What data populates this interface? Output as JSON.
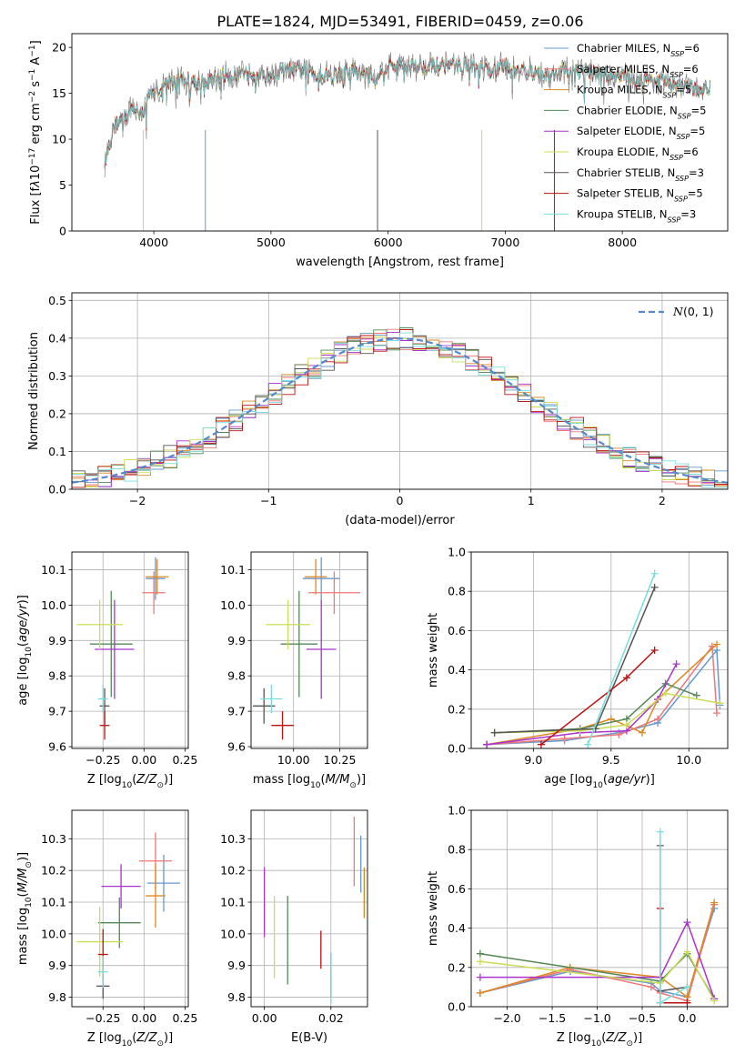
{
  "figure_title": "PLATE=1824, MJD=53491, FIBERID=0459, z=0.06",
  "chart_data": [
    {
      "id": "spectrum",
      "type": "line",
      "title": "PLATE=1824, MJD=53491, FIBERID=0459, z=0.06",
      "xlabel": "wavelength [Angstrom, rest frame]",
      "ylabel": "Flux [fλ10⁻¹⁷ erg cm⁻² s⁻¹ A⁻¹]",
      "xlim": [
        3300,
        8900
      ],
      "ylim": [
        0,
        21.5
      ],
      "xticks": [
        4000,
        5000,
        6000,
        7000,
        8000
      ],
      "yticks": [
        0,
        5,
        10,
        15,
        20
      ],
      "legend_position": "right",
      "grid": false,
      "continuum": {
        "x": [
          3580,
          3650,
          3700,
          3760,
          3800,
          3850,
          3900,
          3950,
          4000,
          4050,
          4100,
          4200,
          4300,
          4400,
          4500,
          4600,
          4700,
          4800,
          4900,
          5000,
          5100,
          5200,
          5300,
          5400,
          5500,
          5600,
          5700,
          5800,
          5900,
          6000,
          6100,
          6200,
          6300,
          6400,
          6500,
          6600,
          6700,
          6800,
          6900,
          7000,
          7100,
          7200,
          7300,
          7400,
          7500,
          7600,
          7700,
          7800,
          7900,
          8000,
          8100,
          8200,
          8300,
          8400,
          8500,
          8600,
          8750
        ],
        "y": [
          7.5,
          11,
          12,
          12.5,
          13,
          13.5,
          12.5,
          15,
          15,
          15.5,
          16,
          16.5,
          16.5,
          16,
          16.5,
          17,
          17,
          17.5,
          17,
          17,
          17.5,
          17.5,
          17.5,
          17,
          17,
          17,
          17.5,
          17,
          17,
          18,
          18,
          18,
          18,
          18,
          18,
          18,
          18,
          17.5,
          17.5,
          18,
          17.5,
          17.5,
          17,
          17,
          17.5,
          17.5,
          17.5,
          17,
          17,
          17,
          16.5,
          16.5,
          16.5,
          16,
          16,
          15.5,
          15.5
        ]
      },
      "series": [
        {
          "name": "Chabrier MILES, N_SSP=6",
          "label_main": "Chabrier MILES, N",
          "label_sub": "SSP",
          "label_tail": "=6",
          "color": "#6699cc"
        },
        {
          "name": "Salpeter MILES, N_SSP=6",
          "label_main": "Salpeter MILES, N",
          "label_sub": "SSP",
          "label_tail": "=6",
          "color": "#ee7777"
        },
        {
          "name": "Kroupa MILES, N_SSP=5",
          "label_main": "Kroupa MILES, N",
          "label_sub": "SSP",
          "label_tail": "=5",
          "color": "#dd8822"
        },
        {
          "name": "Chabrier ELODIE, N_SSP=5",
          "label_main": "Chabrier ELODIE, N",
          "label_sub": "SSP",
          "label_tail": "=5",
          "color": "#558855"
        },
        {
          "name": "Salpeter ELODIE, N_SSP=5",
          "label_main": "Salpeter ELODIE, N",
          "label_sub": "SSP",
          "label_tail": "=5",
          "color": "#aa33cc"
        },
        {
          "name": "Kroupa ELODIE, N_SSP=6",
          "label_main": "Kroupa ELODIE, N",
          "label_sub": "SSP",
          "label_tail": "=6",
          "color": "#ccdd55"
        },
        {
          "name": "Chabrier STELIB, N_SSP=3",
          "label_main": "Chabrier STELIB, N",
          "label_sub": "SSP",
          "label_tail": "=3",
          "color": "#555555"
        },
        {
          "name": "Salpeter STELIB, N_SSP=5",
          "label_main": "Salpeter STELIB, N",
          "label_sub": "SSP",
          "label_tail": "=5",
          "color": "#bb1111"
        },
        {
          "name": "Kroupa STELIB, N_SSP=3",
          "label_main": "Kroupa STELIB, N",
          "label_sub": "SSP",
          "label_tail": "=3",
          "color": "#77dddd"
        }
      ]
    },
    {
      "id": "residuals",
      "type": "histogram",
      "xlabel": "(data-model)/error",
      "ylabel": "Normed distribution",
      "xlim": [
        -2.5,
        2.5
      ],
      "ylim": [
        0,
        0.52
      ],
      "xticks": [
        -2,
        -1,
        0,
        1,
        2
      ],
      "yticks": [
        0.0,
        0.1,
        0.2,
        0.3,
        0.4,
        0.5
      ],
      "bin_width": 0.1,
      "grid": true,
      "legend_label": "N(0,1)",
      "legend_position": "top-right",
      "gaussian_color": "#5588cc"
    },
    {
      "id": "age_vs_Z",
      "type": "errorbar",
      "xlabel": "Z [log10(Z/Z⊙)]",
      "ylabel": "age  [log10(age/yr)]",
      "xlim": [
        -0.44,
        0.27
      ],
      "ylim": [
        9.595,
        10.15
      ],
      "xticks": [
        -0.25,
        0.0,
        0.25
      ],
      "yticks": [
        9.6,
        9.7,
        9.8,
        9.9,
        10.0,
        10.1
      ],
      "grid": true,
      "points": [
        {
          "x": 0.07,
          "xerr": 0.06,
          "y": 10.075,
          "yerr": 0.06,
          "color": "#6699cc"
        },
        {
          "x": 0.06,
          "xerr": 0.07,
          "y": 10.035,
          "yerr": 0.06,
          "color": "#ee7777"
        },
        {
          "x": 0.08,
          "xerr": 0.07,
          "y": 10.08,
          "yerr": 0.05,
          "color": "#dd8822"
        },
        {
          "x": -0.2,
          "xerr": 0.13,
          "y": 9.89,
          "yerr": 0.15,
          "color": "#558855"
        },
        {
          "x": -0.18,
          "xerr": 0.12,
          "y": 9.875,
          "yerr": 0.14,
          "color": "#aa33cc"
        },
        {
          "x": -0.27,
          "xerr": 0.14,
          "y": 9.945,
          "yerr": 0.07,
          "color": "#ccdd55"
        },
        {
          "x": -0.24,
          "xerr": 0.03,
          "y": 9.715,
          "yerr": 0.05,
          "color": "#555555"
        },
        {
          "x": -0.24,
          "xerr": 0.03,
          "y": 9.66,
          "yerr": 0.04,
          "color": "#bb1111"
        },
        {
          "x": -0.25,
          "xerr": 0.03,
          "y": 9.735,
          "yerr": 0.04,
          "color": "#77dddd"
        }
      ]
    },
    {
      "id": "age_vs_mass",
      "type": "errorbar",
      "xlabel": "mass [log10(M/M⊙)]",
      "ylabel": "",
      "xlim": [
        9.77,
        10.4
      ],
      "ylim": [
        9.595,
        10.15
      ],
      "xticks": [
        10.0,
        10.25
      ],
      "yticks": [
        9.6,
        9.7,
        9.8,
        9.9,
        10.0,
        10.1
      ],
      "grid": true,
      "points": [
        {
          "x": 10.15,
          "xerr": 0.1,
          "y": 10.075,
          "yerr": 0.06,
          "color": "#6699cc"
        },
        {
          "x": 10.22,
          "xerr": 0.14,
          "y": 10.035,
          "yerr": 0.06,
          "color": "#ee7777"
        },
        {
          "x": 10.12,
          "xerr": 0.06,
          "y": 10.08,
          "yerr": 0.05,
          "color": "#dd8822"
        },
        {
          "x": 10.03,
          "xerr": 0.1,
          "y": 9.89,
          "yerr": 0.15,
          "color": "#558855"
        },
        {
          "x": 10.15,
          "xerr": 0.08,
          "y": 9.875,
          "yerr": 0.14,
          "color": "#aa33cc"
        },
        {
          "x": 9.97,
          "xerr": 0.12,
          "y": 9.945,
          "yerr": 0.07,
          "color": "#ccdd55"
        },
        {
          "x": 9.84,
          "xerr": 0.06,
          "y": 9.715,
          "yerr": 0.05,
          "color": "#555555"
        },
        {
          "x": 9.94,
          "xerr": 0.06,
          "y": 9.66,
          "yerr": 0.04,
          "color": "#bb1111"
        },
        {
          "x": 9.88,
          "xerr": 0.06,
          "y": 9.735,
          "yerr": 0.04,
          "color": "#77dddd"
        }
      ]
    },
    {
      "id": "weight_vs_age",
      "type": "line",
      "xlabel": "age  [log10(age/yr)]",
      "ylabel": "mass weight",
      "xlim": [
        8.6,
        10.25
      ],
      "ylim": [
        0,
        1.0
      ],
      "xticks": [
        9.0,
        9.5,
        10.0
      ],
      "yticks": [
        0.0,
        0.2,
        0.4,
        0.6,
        0.8,
        1.0
      ],
      "grid": true,
      "series": [
        {
          "name": "Chabrier MILES",
          "color": "#6699cc",
          "x": [
            8.7,
            9.2,
            9.55,
            9.8,
            10.18,
            10.2
          ],
          "y": [
            0.02,
            0.04,
            0.08,
            0.13,
            0.5,
            0.22
          ]
        },
        {
          "name": "Salpeter MILES",
          "color": "#ee7777",
          "x": [
            8.7,
            9.2,
            9.55,
            9.8,
            10.15,
            10.18
          ],
          "y": [
            0.02,
            0.05,
            0.07,
            0.15,
            0.52,
            0.18
          ]
        },
        {
          "name": "Kroupa MILES",
          "color": "#dd8822",
          "x": [
            8.7,
            9.3,
            9.5,
            9.7,
            9.8,
            10.18
          ],
          "y": [
            0.02,
            0.1,
            0.15,
            0.08,
            0.25,
            0.53
          ]
        },
        {
          "name": "Chabrier ELODIE",
          "color": "#558855",
          "x": [
            8.75,
            9.3,
            9.6,
            9.85,
            10.05
          ],
          "y": [
            0.08,
            0.1,
            0.15,
            0.33,
            0.27
          ]
        },
        {
          "name": "Salpeter ELODIE",
          "color": "#aa33cc",
          "x": [
            8.7,
            9.3,
            9.6,
            9.8,
            9.92
          ],
          "y": [
            0.02,
            0.08,
            0.09,
            0.25,
            0.43
          ]
        },
        {
          "name": "Kroupa ELODIE",
          "color": "#ccdd55",
          "x": [
            8.75,
            9.3,
            9.6,
            9.85,
            10.2
          ],
          "y": [
            0.08,
            0.09,
            0.12,
            0.28,
            0.23
          ]
        },
        {
          "name": "Chabrier STELIB",
          "color": "#555555",
          "x": [
            8.75,
            9.4,
            9.78
          ],
          "y": [
            0.08,
            0.1,
            0.82
          ]
        },
        {
          "name": "Salpeter STELIB",
          "color": "#bb1111",
          "x": [
            9.05,
            9.6,
            9.78
          ],
          "y": [
            0.02,
            0.36,
            0.5
          ]
        },
        {
          "name": "Kroupa STELIB",
          "color": "#77dddd",
          "x": [
            9.35,
            9.78
          ],
          "y": [
            0.02,
            0.89
          ]
        }
      ]
    },
    {
      "id": "mass_vs_Z",
      "type": "errorbar",
      "xlabel": "Z [log10(Z/Z⊙)]",
      "ylabel": "mass [log10(M/M⊙)]",
      "xlim": [
        -0.44,
        0.27
      ],
      "ylim": [
        9.77,
        10.39
      ],
      "xticks": [
        -0.25,
        0.0,
        0.25
      ],
      "yticks": [
        9.8,
        9.9,
        10.0,
        10.1,
        10.2,
        10.3
      ],
      "grid": true,
      "points": [
        {
          "x": 0.12,
          "xerr": 0.1,
          "y": 10.16,
          "yerr": 0.09,
          "color": "#6699cc"
        },
        {
          "x": 0.07,
          "xerr": 0.1,
          "y": 10.23,
          "yerr": 0.09,
          "color": "#ee7777"
        },
        {
          "x": 0.07,
          "xerr": 0.06,
          "y": 10.12,
          "yerr": 0.1,
          "color": "#dd8822"
        },
        {
          "x": -0.15,
          "xerr": 0.13,
          "y": 10.035,
          "yerr": 0.08,
          "color": "#558855"
        },
        {
          "x": -0.14,
          "xerr": 0.12,
          "y": 10.15,
          "yerr": 0.07,
          "color": "#aa33cc"
        },
        {
          "x": -0.27,
          "xerr": 0.14,
          "y": 9.975,
          "yerr": 0.11,
          "color": "#ccdd55"
        },
        {
          "x": -0.25,
          "xerr": 0.04,
          "y": 9.835,
          "yerr": 0.04,
          "color": "#555555"
        },
        {
          "x": -0.25,
          "xerr": 0.03,
          "y": 9.935,
          "yerr": 0.08,
          "color": "#bb1111"
        },
        {
          "x": -0.25,
          "xerr": 0.03,
          "y": 9.88,
          "yerr": 0.05,
          "color": "#77dddd"
        }
      ]
    },
    {
      "id": "mass_vs_EBV",
      "type": "errorbar",
      "xlabel": "E(B-V)",
      "ylabel": "",
      "xlim": [
        -0.004,
        0.031
      ],
      "ylim": [
        9.77,
        10.39
      ],
      "xticks": [
        0.0,
        0.02
      ],
      "yticks": [
        9.8,
        9.9,
        10.0,
        10.1,
        10.2,
        10.3
      ],
      "grid": true,
      "points": [
        {
          "x": 0.029,
          "y": 10.22,
          "yerr": 0.09,
          "color": "#6699cc"
        },
        {
          "x": 0.027,
          "y": 10.26,
          "yerr": 0.11,
          "color": "#ee7777"
        },
        {
          "x": 0.03,
          "y": 10.13,
          "yerr": 0.08,
          "color": "#dd8822"
        },
        {
          "x": 0.007,
          "y": 9.98,
          "yerr": 0.14,
          "color": "#558855"
        },
        {
          "x": 0.0,
          "y": 10.1,
          "yerr": 0.11,
          "color": "#aa33cc"
        },
        {
          "x": 0.003,
          "y": 9.99,
          "yerr": 0.13,
          "color": "#ccdd55"
        },
        {
          "x": 0.02,
          "y": 9.87,
          "yerr": 0.07,
          "color": "#555555"
        },
        {
          "x": 0.017,
          "y": 9.95,
          "yerr": 0.06,
          "color": "#bb1111"
        },
        {
          "x": 0.02,
          "y": 9.86,
          "yerr": 0.08,
          "color": "#77dddd"
        }
      ]
    },
    {
      "id": "weight_vs_Z",
      "type": "line",
      "xlabel": "Z [log10(Z/Z⊙)]",
      "ylabel": "mass weight",
      "xlim": [
        -2.4,
        0.45
      ],
      "ylim": [
        0,
        1.0
      ],
      "xticks": [
        -2.0,
        -1.5,
        -1.0,
        -0.5,
        0.0
      ],
      "yticks": [
        0.0,
        0.2,
        0.4,
        0.6,
        0.8,
        1.0
      ],
      "grid": true,
      "series": [
        {
          "name": "Chabrier MILES",
          "color": "#6699cc",
          "x": [
            -2.3,
            -1.3,
            -0.4,
            -0.3,
            0.0,
            0.3
          ],
          "y": [
            0.07,
            0.18,
            0.12,
            0.08,
            0.05,
            0.5
          ]
        },
        {
          "name": "Salpeter MILES",
          "color": "#ee7777",
          "x": [
            -2.3,
            -1.3,
            -0.4,
            -0.3,
            0.0,
            0.3
          ],
          "y": [
            0.07,
            0.19,
            0.1,
            0.07,
            0.03,
            0.52
          ]
        },
        {
          "name": "Kroupa MILES",
          "color": "#dd8822",
          "x": [
            -2.3,
            -1.3,
            -0.3,
            0.0,
            0.3
          ],
          "y": [
            0.07,
            0.2,
            0.15,
            0.05,
            0.53
          ]
        },
        {
          "name": "Chabrier ELODIE",
          "color": "#558855",
          "x": [
            -2.3,
            -0.3,
            0.0,
            0.3
          ],
          "y": [
            0.27,
            0.13,
            0.27,
            0.04
          ]
        },
        {
          "name": "Salpeter ELODIE",
          "color": "#aa33cc",
          "x": [
            -2.3,
            -0.3,
            0.0,
            0.3
          ],
          "y": [
            0.15,
            0.15,
            0.43,
            0.04
          ]
        },
        {
          "name": "Kroupa ELODIE",
          "color": "#ccdd55",
          "x": [
            -2.3,
            -0.3,
            0.0,
            0.3
          ],
          "y": [
            0.23,
            0.12,
            0.28,
            0.03
          ]
        },
        {
          "name": "Chabrier STELIB",
          "color": "#555555",
          "x": [
            -0.3,
            -0.3,
            0.0
          ],
          "y": [
            0.82,
            0.08,
            0.1
          ]
        },
        {
          "name": "Salpeter STELIB",
          "color": "#bb1111",
          "x": [
            -0.3,
            -0.3,
            0.0
          ],
          "y": [
            0.5,
            0.02,
            0.02
          ]
        },
        {
          "name": "Kroupa STELIB",
          "color": "#77dddd",
          "x": [
            -0.3,
            -0.3,
            0.0
          ],
          "y": [
            0.89,
            0.02,
            0.1
          ]
        }
      ]
    }
  ]
}
